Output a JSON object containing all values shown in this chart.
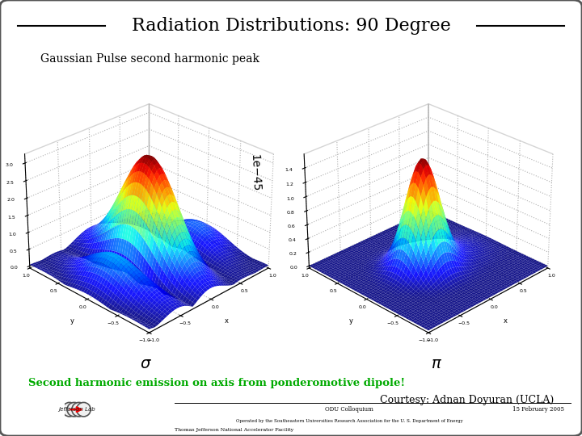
{
  "title": "Radiation Distributions: 90 Degree",
  "subtitle": "Gaussian Pulse second harmonic peak",
  "label_sigma": "$\\sigma$",
  "label_pi": "$\\pi$",
  "green_text": "Second harmonic emission on axis from ponderomotive dipole!",
  "courtesy_text": "Courtesy: Adnan Doyuran (UCLA)",
  "footer_center": "ODU Colloquium",
  "footer_right": "15 February 2005",
  "footer_bottom": "Operated by the Southeastern Universities Research Association for the U. S. Department of Energy",
  "facility_text": "Thomas Jefferson National Accelerator Facility",
  "bg_color": "#ffffff",
  "border_color": "#555555",
  "title_color": "#000000",
  "green_color": "#00aa00",
  "xlabel": "x",
  "ylabel": "y"
}
